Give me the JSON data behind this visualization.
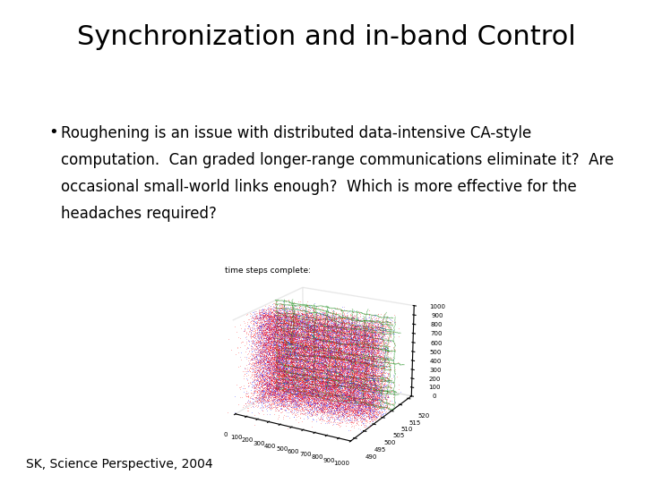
{
  "title": "Synchronization and in-band Control",
  "bullet_line1": "Roughening is an issue with distributed data-intensive CA-style",
  "bullet_line2": "computation.  Can graded longer-range communications eliminate it?  Are",
  "bullet_line3": "occasional small-world links enough?  Which is more effective for the",
  "bullet_line4": "headaches required?",
  "footnote": "SK, Science Perspective, 2004",
  "bg_color": "#ffffff",
  "title_fontsize": 22,
  "bullet_fontsize": 12,
  "footnote_fontsize": 10,
  "plot_sublabel": "time steps complete:",
  "y_ticks": [
    490,
    495,
    500,
    505,
    510,
    515,
    520
  ],
  "x_ticks": [
    0,
    100,
    200,
    300,
    400,
    500,
    600,
    700,
    800,
    900,
    1000
  ],
  "z_ticks": [
    0,
    100,
    200,
    300,
    400,
    500,
    600,
    700,
    800,
    900,
    1000
  ],
  "seed": 42
}
